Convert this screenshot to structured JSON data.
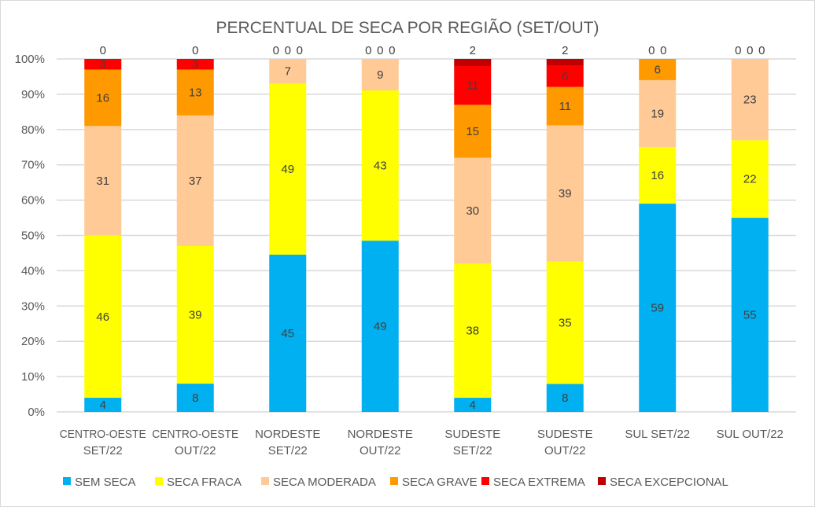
{
  "chart_data": {
    "type": "bar",
    "stacked": "percent",
    "title": "PERCENTUAL DE SECA POR REGIÃO (SET/OUT)",
    "xlabel": "",
    "ylabel": "",
    "ylim": [
      0,
      100
    ],
    "yticks": [
      "0%",
      "10%",
      "20%",
      "30%",
      "40%",
      "50%",
      "60%",
      "70%",
      "80%",
      "90%",
      "100%"
    ],
    "grid": true,
    "legend_position": "bottom",
    "categories": [
      [
        "CENTRO-OESTE",
        "SET/22"
      ],
      [
        "CENTRO-OESTE",
        "OUT/22"
      ],
      [
        "NORDESTE",
        "SET/22"
      ],
      [
        "NORDESTE",
        "OUT/22"
      ],
      [
        "SUDESTE",
        "SET/22"
      ],
      [
        "SUDESTE",
        "OUT/22"
      ],
      [
        "SUL SET/22"
      ],
      [
        "SUL OUT/22"
      ]
    ],
    "series": [
      {
        "name": "SEM SECA",
        "color": "#00B0F0",
        "values": [
          4,
          8,
          45,
          49,
          4,
          8,
          59,
          55
        ]
      },
      {
        "name": "SECA FRACA",
        "color": "#FFFF00",
        "values": [
          46,
          39,
          49,
          43,
          38,
          35,
          16,
          22
        ]
      },
      {
        "name": "SECA MODERADA",
        "color": "#FFCA96",
        "values": [
          31,
          37,
          7,
          9,
          30,
          39,
          19,
          23
        ]
      },
      {
        "name": "SECA GRAVE",
        "color": "#FF9900",
        "values": [
          16,
          13,
          0,
          0,
          15,
          11,
          6,
          0
        ]
      },
      {
        "name": "SECA EXTREMA",
        "color": "#FF0000",
        "values": [
          3,
          3,
          0,
          0,
          11,
          6,
          0,
          0
        ]
      },
      {
        "name": "SECA EXCEPCIONAL",
        "color": "#C00000",
        "values": [
          0,
          0,
          0,
          0,
          2,
          2,
          0,
          0
        ]
      }
    ]
  }
}
